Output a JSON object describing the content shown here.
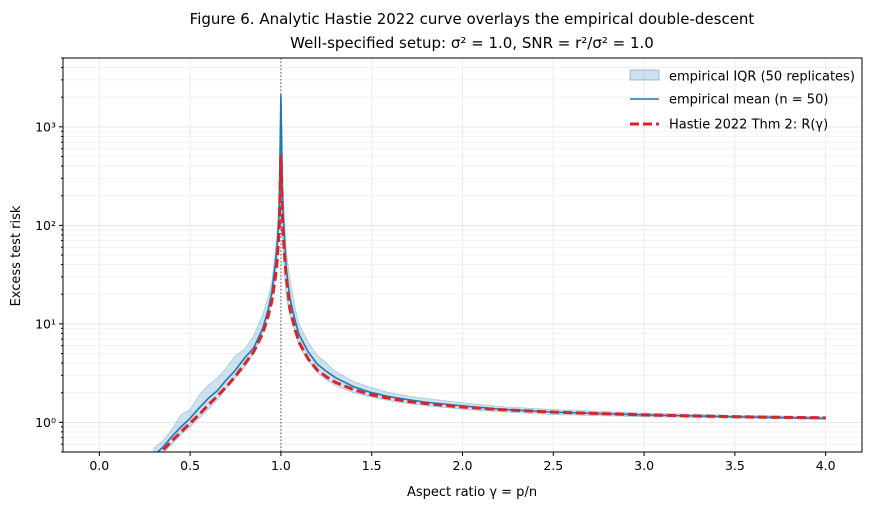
{
  "chart_data": {
    "type": "line",
    "title": "Figure 6.  Analytic Hastie 2022 curve overlays the empirical double-descent",
    "subtitle": "Well-specified setup: σ² = 1.0, SNR = r²/σ² = 1.0",
    "xlabel": "Aspect ratio  γ = p/n",
    "ylabel": "Excess test risk",
    "xlim": [
      -0.2,
      4.2
    ],
    "ylim": [
      0.5,
      5000
    ],
    "yscale": "log",
    "grid": true,
    "legend_position": "upper right",
    "x_tick_labels": [
      "0.0",
      "0.5",
      "1.0",
      "1.5",
      "2.0",
      "2.5",
      "3.0",
      "3.5",
      "4.0"
    ],
    "y_tick_labels": [
      "10⁰",
      "10¹",
      "10²",
      "10³"
    ],
    "reference_line": {
      "x": 1.0,
      "style": "dotted",
      "color": "#555555"
    },
    "series": [
      {
        "name": "empirical IQR (50 replicates)",
        "kind": "band",
        "color": "#1f77b4",
        "x": [
          0.3,
          0.35,
          0.4,
          0.45,
          0.5,
          0.55,
          0.6,
          0.65,
          0.7,
          0.75,
          0.8,
          0.85,
          0.9,
          0.93,
          0.95,
          0.97,
          0.98,
          0.99,
          1.0,
          1.01,
          1.02,
          1.03,
          1.05,
          1.08,
          1.1,
          1.15,
          1.2,
          1.25,
          1.3,
          1.4,
          1.5,
          1.6,
          1.7,
          1.8,
          2.0,
          2.2,
          2.5,
          3.0,
          3.5,
          4.0
        ],
        "lower": [
          0.4,
          0.48,
          0.6,
          0.75,
          0.9,
          1.1,
          1.35,
          1.7,
          2.2,
          2.8,
          3.6,
          5.0,
          8.0,
          12.0,
          17.0,
          30.0,
          45.0,
          90.0,
          120.0,
          60.0,
          30.0,
          18.0,
          12.0,
          8.0,
          6.0,
          4.2,
          3.2,
          2.7,
          2.35,
          2.0,
          1.8,
          1.65,
          1.55,
          1.47,
          1.36,
          1.28,
          1.2,
          1.14,
          1.1,
          1.07
        ],
        "upper": [
          0.55,
          0.65,
          0.85,
          1.2,
          1.35,
          1.9,
          2.4,
          2.8,
          3.6,
          4.8,
          5.5,
          7.6,
          12.5,
          19.0,
          27.0,
          55.0,
          90.0,
          200.0,
          2100.0,
          260.0,
          120.0,
          55.0,
          28.0,
          14.0,
          10.0,
          6.5,
          4.8,
          4.0,
          3.3,
          2.6,
          2.25,
          2.0,
          1.85,
          1.75,
          1.58,
          1.45,
          1.35,
          1.24,
          1.18,
          1.14
        ]
      },
      {
        "name": "empirical mean (n = 50)",
        "kind": "line",
        "color": "#1f77b4",
        "x": [
          0.3,
          0.35,
          0.4,
          0.45,
          0.5,
          0.55,
          0.6,
          0.65,
          0.7,
          0.75,
          0.8,
          0.85,
          0.9,
          0.93,
          0.95,
          0.97,
          0.98,
          0.99,
          1.0,
          1.01,
          1.02,
          1.03,
          1.05,
          1.08,
          1.1,
          1.15,
          1.2,
          1.25,
          1.3,
          1.4,
          1.5,
          1.6,
          1.7,
          1.8,
          2.0,
          2.2,
          2.5,
          3.0,
          3.5,
          4.0
        ],
        "values": [
          0.46,
          0.56,
          0.72,
          0.9,
          1.1,
          1.4,
          1.75,
          2.1,
          2.7,
          3.4,
          4.5,
          5.7,
          9.0,
          14.0,
          21.0,
          42.0,
          65.0,
          130.0,
          2100.0,
          160.0,
          70.0,
          35.0,
          18.0,
          10.5,
          7.8,
          5.2,
          3.9,
          3.3,
          2.85,
          2.3,
          2.0,
          1.82,
          1.7,
          1.6,
          1.47,
          1.36,
          1.27,
          1.19,
          1.14,
          1.1
        ]
      },
      {
        "name": "Hastie 2022 Thm 2: R(γ)",
        "kind": "line",
        "style": "dashed",
        "color": "#d62728",
        "x": [
          0.3,
          0.35,
          0.4,
          0.45,
          0.5,
          0.55,
          0.6,
          0.65,
          0.7,
          0.75,
          0.8,
          0.85,
          0.9,
          0.93,
          0.95,
          0.97,
          0.98,
          0.99,
          1.0,
          1.01,
          1.02,
          1.03,
          1.05,
          1.08,
          1.1,
          1.15,
          1.2,
          1.25,
          1.3,
          1.4,
          1.5,
          1.6,
          1.7,
          1.8,
          2.0,
          2.2,
          2.5,
          3.0,
          3.5,
          4.0
        ],
        "values": [
          0.43,
          0.52,
          0.65,
          0.8,
          0.98,
          1.2,
          1.5,
          1.85,
          2.3,
          2.95,
          3.9,
          5.2,
          8.0,
          12.0,
          17.0,
          30.0,
          45.0,
          90.0,
          500.0,
          100.0,
          50.0,
          30.0,
          14.0,
          8.5,
          6.5,
          4.4,
          3.4,
          2.9,
          2.55,
          2.15,
          1.9,
          1.75,
          1.63,
          1.55,
          1.43,
          1.35,
          1.27,
          1.19,
          1.14,
          1.11
        ]
      }
    ]
  }
}
